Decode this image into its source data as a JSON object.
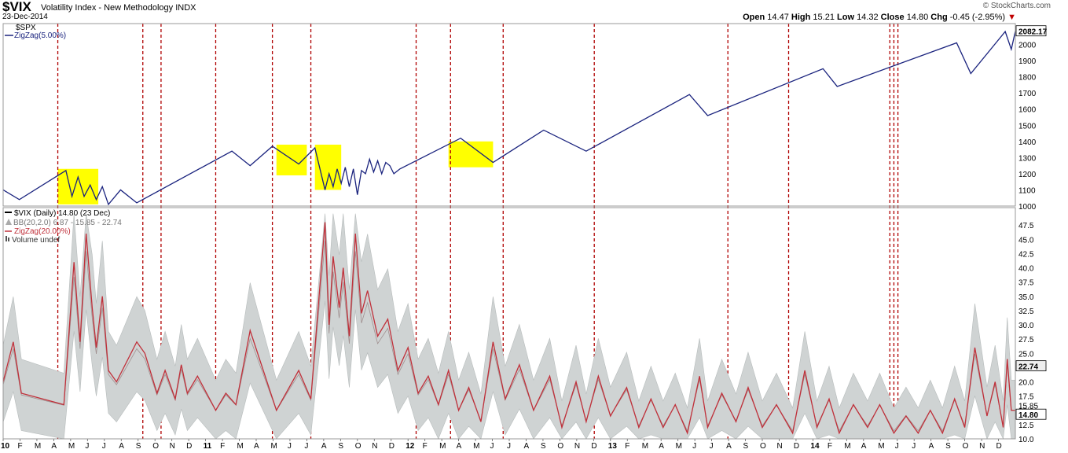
{
  "header": {
    "symbol": "$VIX",
    "description": "Volatility Index - New Methodology  INDX",
    "date": "23-Dec-2014",
    "logo": "© StockCharts.com",
    "ohlc": {
      "open_label": "Open",
      "open": "14.47",
      "high_label": "High",
      "high": "15.21",
      "low_label": "Low",
      "low": "14.32",
      "close_label": "Close",
      "close": "14.80",
      "chg_label": "Chg",
      "chg": "-0.45 (-2.95%)"
    },
    "down_arrow_color": "#c00000"
  },
  "chart_data": [
    {
      "type": "line",
      "panel": "top",
      "legend": [
        "$SPX",
        "ZigZag(5.00%)"
      ],
      "series_color": "#1a237e",
      "last_value_label": "2082.17",
      "ylim": [
        1000,
        2100
      ],
      "yticks": [
        "1000",
        "1100",
        "1200",
        "1300",
        "1400",
        "1500",
        "1600",
        "1700",
        "1800",
        "1900",
        "2000"
      ],
      "x": [
        2010.0,
        2010.08,
        2010.31,
        2010.34,
        2010.37,
        2010.4,
        2010.43,
        2010.46,
        2010.49,
        2010.52,
        2010.58,
        2010.66,
        2011.13,
        2011.22,
        2011.33,
        2011.46,
        2011.54,
        2011.59,
        2011.61,
        2011.63,
        2011.65,
        2011.67,
        2011.69,
        2011.71,
        2011.73,
        2011.75,
        2011.77,
        2011.79,
        2011.81,
        2011.83,
        2011.85,
        2011.87,
        2011.89,
        2011.91,
        2011.93,
        2011.96,
        2012.26,
        2012.42,
        2012.67,
        2012.88,
        2013.39,
        2013.48,
        2014.05,
        2014.12,
        2014.71,
        2014.78,
        2014.95,
        2014.98,
        2015.0
      ],
      "values": [
        1100,
        1040,
        1220,
        1060,
        1180,
        1060,
        1130,
        1040,
        1120,
        1010,
        1100,
        1020,
        1340,
        1250,
        1370,
        1260,
        1360,
        1100,
        1200,
        1120,
        1230,
        1140,
        1240,
        1120,
        1230,
        1070,
        1220,
        1200,
        1290,
        1210,
        1280,
        1200,
        1270,
        1250,
        1200,
        1230,
        1420,
        1270,
        1470,
        1340,
        1690,
        1560,
        1850,
        1740,
        2010,
        1820,
        2080,
        1970,
        2082
      ]
    },
    {
      "type": "line",
      "panel": "bottom",
      "legend": [
        "$VIX (Daily) 14.80 (23 Dec)",
        "BB(20,2.0) 6.87 - 15.85 - 22.74",
        "ZigZag(20.00%)",
        "Volume undef"
      ],
      "last_value_label": "14.80",
      "upper_band_label": "22.74",
      "middle_band_label": "15.85",
      "ylim": [
        10,
        50
      ],
      "yticks": [
        "10.0",
        "12.5",
        "15.0",
        "17.5",
        "20.0",
        "22.5",
        "25.0",
        "27.5",
        "30.0",
        "32.5",
        "35.0",
        "37.5",
        "40.0",
        "42.5",
        "45.0",
        "47.5"
      ],
      "x": [
        2010.0,
        2010.05,
        2010.09,
        2010.3,
        2010.35,
        2010.38,
        2010.41,
        2010.44,
        2010.46,
        2010.49,
        2010.52,
        2010.56,
        2010.66,
        2010.7,
        2010.76,
        2010.8,
        2010.85,
        2010.88,
        2010.91,
        2010.96,
        2011.05,
        2011.1,
        2011.15,
        2011.22,
        2011.35,
        2011.46,
        2011.52,
        2011.59,
        2011.61,
        2011.63,
        2011.66,
        2011.68,
        2011.71,
        2011.74,
        2011.77,
        2011.8,
        2011.85,
        2011.9,
        2011.95,
        2012.0,
        2012.05,
        2012.1,
        2012.15,
        2012.2,
        2012.25,
        2012.3,
        2012.36,
        2012.42,
        2012.48,
        2012.55,
        2012.62,
        2012.7,
        2012.76,
        2012.83,
        2012.88,
        2012.94,
        2013.0,
        2013.08,
        2013.14,
        2013.2,
        2013.26,
        2013.32,
        2013.38,
        2013.44,
        2013.48,
        2013.55,
        2013.62,
        2013.68,
        2013.75,
        2013.82,
        2013.9,
        2013.96,
        2014.02,
        2014.08,
        2014.13,
        2014.2,
        2014.27,
        2014.33,
        2014.4,
        2014.46,
        2014.52,
        2014.58,
        2014.64,
        2014.7,
        2014.75,
        2014.8,
        2014.86,
        2014.9,
        2014.94,
        2014.96,
        2014.98,
        2015.0
      ],
      "values": [
        20,
        27,
        18,
        16,
        41,
        27,
        46,
        33,
        26,
        35,
        22,
        20,
        27,
        25,
        18,
        22,
        17,
        23,
        18,
        21,
        15,
        18,
        16,
        29,
        15,
        22,
        17,
        48,
        30,
        42,
        33,
        40,
        28,
        46,
        32,
        36,
        28,
        31,
        22,
        26,
        18,
        21,
        16,
        22,
        15,
        19,
        13,
        27,
        17,
        23,
        15,
        21,
        12,
        20,
        13,
        21,
        14,
        19,
        12,
        17,
        12,
        16,
        11,
        21,
        12,
        18,
        13,
        19,
        12,
        16,
        11,
        22,
        12,
        17,
        11,
        16,
        12,
        16,
        11,
        14,
        11,
        15,
        11,
        17,
        12,
        26,
        14,
        20,
        12,
        24,
        15,
        15
      ]
    }
  ],
  "x_axis": {
    "labels": [
      "10",
      "F",
      "M",
      "A",
      "M",
      "J",
      "J",
      "A",
      "S",
      "O",
      "N",
      "D",
      "11",
      "F",
      "M",
      "A",
      "M",
      "J",
      "J",
      "A",
      "S",
      "O",
      "N",
      "D",
      "12",
      "F",
      "M",
      "A",
      "M",
      "J",
      "J",
      "A",
      "S",
      "O",
      "N",
      "D",
      "13",
      "F",
      "M",
      "A",
      "M",
      "J",
      "J",
      "A",
      "S",
      "O",
      "N",
      "D",
      "14",
      "F",
      "M",
      "A",
      "M",
      "J",
      "J",
      "A",
      "S",
      "O",
      "N",
      "D"
    ],
    "bold_labels": [
      "10",
      "11",
      "12",
      "13",
      "14"
    ],
    "start": 2010.0,
    "end": 2015.0
  },
  "vertical_markers": [
    2010.27,
    2010.69,
    2010.78,
    2011.05,
    2011.33,
    2011.52,
    2012.04,
    2012.21,
    2012.47,
    2012.92,
    2013.58,
    2013.88,
    2014.38,
    2014.4,
    2014.42
  ],
  "highlight_boxes": [
    {
      "x0": 2010.27,
      "x1": 2010.47,
      "y0": 1010,
      "y1": 1230
    },
    {
      "x0": 2011.35,
      "x1": 2011.5,
      "y0": 1190,
      "y1": 1380
    },
    {
      "x0": 2011.54,
      "x1": 2011.67,
      "y0": 1100,
      "y1": 1380
    },
    {
      "x0": 2012.2,
      "x1": 2012.42,
      "y0": 1240,
      "y1": 1400
    }
  ],
  "colors": {
    "marker": "#b00000",
    "highlight": "#ffff00",
    "zigzag_red": "#c0303a",
    "band_fill": "#cfd3d3",
    "vix_line": "#a09090"
  }
}
